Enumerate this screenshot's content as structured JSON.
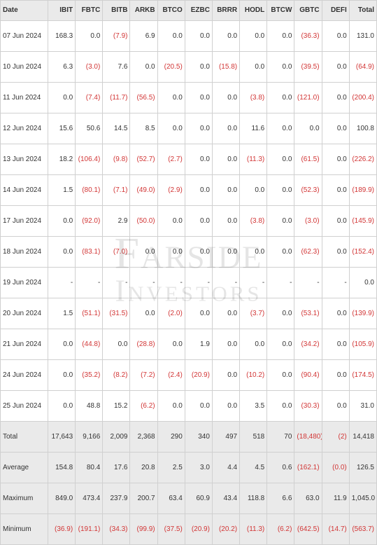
{
  "watermark": {
    "line1": "Farside",
    "line2": "Investors"
  },
  "columns": [
    "Date",
    "IBIT",
    "FBTC",
    "BITB",
    "ARKB",
    "BTCO",
    "EZBC",
    "BRRR",
    "HODL",
    "BTCW",
    "GBTC",
    "DEFI",
    "Total"
  ],
  "rows": [
    {
      "d": "07 Jun 2024",
      "v": [
        "168.3",
        "0.0",
        "(7.9)",
        "6.9",
        "0.0",
        "0.0",
        "0.0",
        "0.0",
        "0.0",
        "(36.3)",
        "0.0",
        "131.0"
      ]
    },
    {
      "d": "10 Jun 2024",
      "v": [
        "6.3",
        "(3.0)",
        "7.6",
        "0.0",
        "(20.5)",
        "0.0",
        "(15.8)",
        "0.0",
        "0.0",
        "(39.5)",
        "0.0",
        "(64.9)"
      ]
    },
    {
      "d": "11 Jun 2024",
      "v": [
        "0.0",
        "(7.4)",
        "(11.7)",
        "(56.5)",
        "0.0",
        "0.0",
        "0.0",
        "(3.8)",
        "0.0",
        "(121.0)",
        "0.0",
        "(200.4)"
      ]
    },
    {
      "d": "12 Jun 2024",
      "v": [
        "15.6",
        "50.6",
        "14.5",
        "8.5",
        "0.0",
        "0.0",
        "0.0",
        "11.6",
        "0.0",
        "0.0",
        "0.0",
        "100.8"
      ]
    },
    {
      "d": "13 Jun 2024",
      "v": [
        "18.2",
        "(106.4)",
        "(9.8)",
        "(52.7)",
        "(2.7)",
        "0.0",
        "0.0",
        "(11.3)",
        "0.0",
        "(61.5)",
        "0.0",
        "(226.2)"
      ]
    },
    {
      "d": "14 Jun 2024",
      "v": [
        "1.5",
        "(80.1)",
        "(7.1)",
        "(49.0)",
        "(2.9)",
        "0.0",
        "0.0",
        "0.0",
        "0.0",
        "(52.3)",
        "0.0",
        "(189.9)"
      ]
    },
    {
      "d": "17 Jun 2024",
      "v": [
        "0.0",
        "(92.0)",
        "2.9",
        "(50.0)",
        "0.0",
        "0.0",
        "0.0",
        "(3.8)",
        "0.0",
        "(3.0)",
        "0.0",
        "(145.9)"
      ]
    },
    {
      "d": "18 Jun 2024",
      "v": [
        "0.0",
        "(83.1)",
        "(7.0)",
        "0.0",
        "0.0",
        "0.0",
        "0.0",
        "0.0",
        "0.0",
        "(62.3)",
        "0.0",
        "(152.4)"
      ]
    },
    {
      "d": "19 Jun 2024",
      "v": [
        "-",
        "-",
        "-",
        "-",
        "-",
        "-",
        "-",
        "-",
        "-",
        "-",
        "-",
        "0.0"
      ]
    },
    {
      "d": "20 Jun 2024",
      "v": [
        "1.5",
        "(51.1)",
        "(31.5)",
        "0.0",
        "(2.0)",
        "0.0",
        "0.0",
        "(3.7)",
        "0.0",
        "(53.1)",
        "0.0",
        "(139.9)"
      ]
    },
    {
      "d": "21 Jun 2024",
      "v": [
        "0.0",
        "(44.8)",
        "0.0",
        "(28.8)",
        "0.0",
        "1.9",
        "0.0",
        "0.0",
        "0.0",
        "(34.2)",
        "0.0",
        "(105.9)"
      ]
    },
    {
      "d": "24 Jun 2024",
      "v": [
        "0.0",
        "(35.2)",
        "(8.2)",
        "(7.2)",
        "(2.4)",
        "(20.9)",
        "0.0",
        "(10.2)",
        "0.0",
        "(90.4)",
        "0.0",
        "(174.5)"
      ]
    },
    {
      "d": "25 Jun 2024",
      "v": [
        "0.0",
        "48.8",
        "15.2",
        "(6.2)",
        "0.0",
        "0.0",
        "0.0",
        "3.5",
        "0.0",
        "(30.3)",
        "0.0",
        "31.0"
      ],
      "hl": true
    }
  ],
  "summary": [
    {
      "d": "Total",
      "v": [
        "17,643",
        "9,166",
        "2,009",
        "2,368",
        "290",
        "340",
        "497",
        "518",
        "70",
        "(18,480)",
        "(2)",
        "14,418"
      ]
    },
    {
      "d": "Average",
      "v": [
        "154.8",
        "80.4",
        "17.6",
        "20.8",
        "2.5",
        "3.0",
        "4.4",
        "4.5",
        "0.6",
        "(162.1)",
        "(0.0)",
        "126.5"
      ]
    },
    {
      "d": "Maximum",
      "v": [
        "849.0",
        "473.4",
        "237.9",
        "200.7",
        "63.4",
        "60.9",
        "43.4",
        "118.8",
        "6.6",
        "63.0",
        "11.9",
        "1,045.0"
      ]
    },
    {
      "d": "Minimum",
      "v": [
        "(36.9)",
        "(191.1)",
        "(34.3)",
        "(99.9)",
        "(37.5)",
        "(20.9)",
        "(20.2)",
        "(11.3)",
        "(6.2)",
        "(642.5)",
        "(14.7)",
        "(563.7)"
      ]
    }
  ]
}
